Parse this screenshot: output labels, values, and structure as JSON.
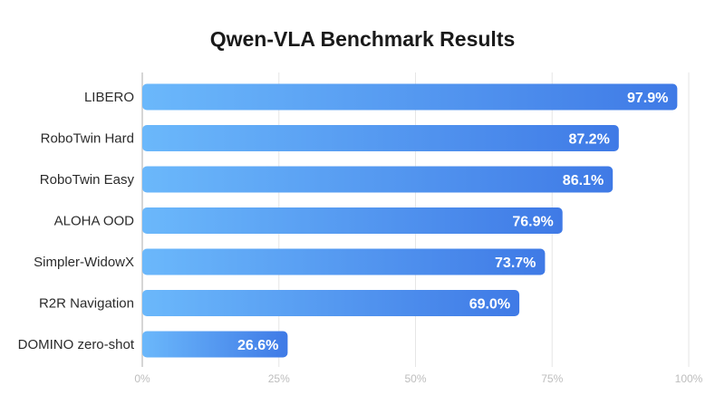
{
  "chart_data": {
    "type": "bar",
    "orientation": "horizontal",
    "title": "Qwen-VLA Benchmark Results",
    "categories": [
      "LIBERO",
      "RoboTwin Hard",
      "RoboTwin Easy",
      "ALOHA OOD",
      "Simpler-WidowX",
      "R2R Navigation",
      "DOMINO zero-shot"
    ],
    "values": [
      97.9,
      87.2,
      86.1,
      76.9,
      73.7,
      69.0,
      26.6
    ],
    "value_labels": [
      "97.9%",
      "87.2%",
      "86.1%",
      "76.9%",
      "73.7%",
      "69.0%",
      "26.6%"
    ],
    "xlim": [
      0,
      100
    ],
    "xticks": [
      0,
      25,
      50,
      75,
      100
    ],
    "xtick_labels": [
      "0%",
      "25%",
      "50%",
      "75%",
      "100%"
    ],
    "xlabel": "",
    "ylabel": "",
    "grid": "vertical",
    "colors": {
      "bar_start": "#6bb8fb",
      "bar_end": "#3f7ae6",
      "grid": "#e6e6e6",
      "axis": "#c8c8c8"
    }
  }
}
